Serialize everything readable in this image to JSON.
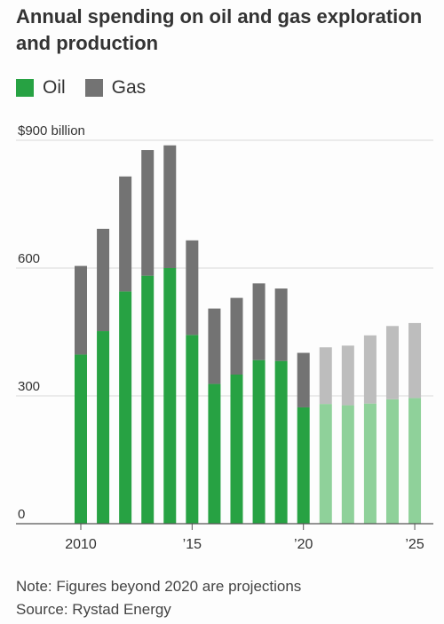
{
  "chart_data": {
    "type": "bar",
    "stacked": true,
    "title": "Annual spending on oil and gas exploration and production",
    "xlabel": "",
    "ylabel": "",
    "ylim": [
      0,
      900
    ],
    "yticks": [
      {
        "value": 900,
        "label": "$900 billion"
      },
      {
        "value": 600,
        "label": "600"
      },
      {
        "value": 300,
        "label": "300"
      },
      {
        "value": 0,
        "label": "0"
      }
    ],
    "xticks": [
      {
        "year": 2010,
        "label": "2010"
      },
      {
        "year": 2015,
        "label": "’15"
      },
      {
        "year": 2020,
        "label": "’20"
      },
      {
        "year": 2025,
        "label": "’25"
      }
    ],
    "categories": [
      2010,
      2011,
      2012,
      2013,
      2014,
      2015,
      2016,
      2017,
      2018,
      2019,
      2020,
      2021,
      2022,
      2023,
      2024,
      2025
    ],
    "projected_from": 2021,
    "grid": true,
    "legend_position": "top-left",
    "series": [
      {
        "name": "Oil",
        "color": "#27a243",
        "projected_color": "#8fd19a",
        "values": [
          397,
          452,
          545,
          582,
          600,
          443,
          328,
          350,
          384,
          382,
          273,
          281,
          278,
          282,
          292,
          295
        ]
      },
      {
        "name": "Gas",
        "color": "#737373",
        "projected_color": "#bdbdbd",
        "values": [
          208,
          240,
          270,
          295,
          288,
          222,
          177,
          180,
          180,
          170,
          128,
          133,
          140,
          160,
          172,
          176
        ]
      }
    ]
  },
  "notes": {
    "note": "Note: Figures beyond 2020 are projections",
    "source": "Source: Rystad Energy"
  }
}
